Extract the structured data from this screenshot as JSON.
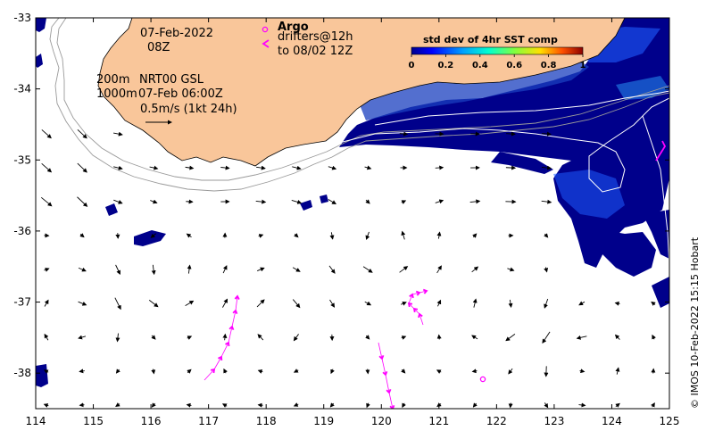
{
  "map": {
    "date": "07-Feb-2022",
    "hour": "08Z",
    "legend_argo": "Argo",
    "legend_drifters": "drifters@12h",
    "legend_drifters_to": "to 08/02 12Z",
    "depth_200": "200m",
    "depth_1000": "1000m",
    "model": "NRT00 GSL",
    "model_time": "07-Feb 06:00Z",
    "scale_label": "0.5m/s (1kt 24h)",
    "colorbar_title": "std dev of 4hr SST comp",
    "colorbar_ticks": [
      "0",
      "0.2",
      "0.4",
      "0.6",
      "0.8",
      "1"
    ],
    "credit": "© IMOS 10-Feb-2022 15:15 Hobart",
    "x_ticks": [
      "114",
      "115",
      "116",
      "117",
      "118",
      "119",
      "120",
      "121",
      "122",
      "123",
      "124",
      "125"
    ],
    "y_ticks": [
      "-33",
      "-34",
      "-35",
      "-36",
      "-37",
      "-38"
    ],
    "x_range": [
      114,
      125
    ],
    "y_range": [
      -38.5,
      -33
    ],
    "colors": {
      "land": "#f9c69a",
      "sst_low": "#00008b",
      "sst_mid": "#1e5bff",
      "drifter": "#ff00ff",
      "contour": "#9a9a9a"
    }
  }
}
